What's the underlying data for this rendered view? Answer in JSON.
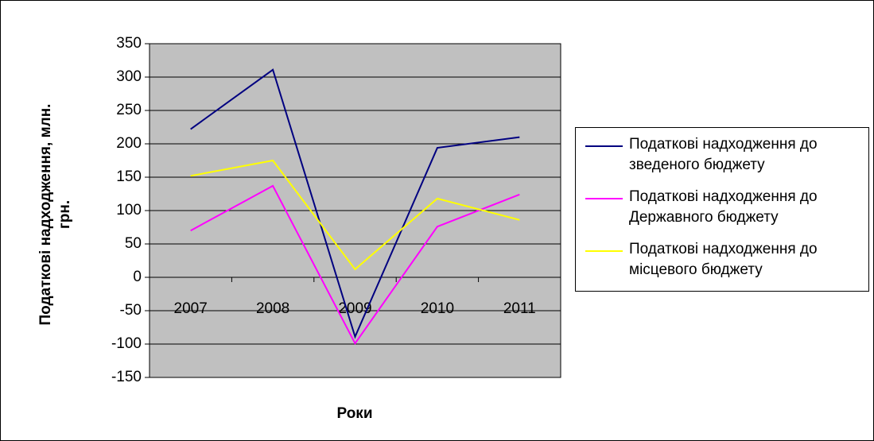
{
  "chart_data": {
    "type": "line",
    "x_label": "Роки",
    "y_label": "Податкові надходження, млн. грн.",
    "categories": [
      "2007",
      "2008",
      "2009",
      "2010",
      "2011"
    ],
    "series": [
      {
        "name": "Податкові надходження до зведеного бюджету",
        "color": "#000080",
        "values": [
          222,
          311,
          -89,
          194,
          210
        ]
      },
      {
        "name": "Податкові надходження до Державного бюджету",
        "color": "#ff00ff",
        "values": [
          70,
          137,
          -99,
          76,
          124
        ]
      },
      {
        "name": "Податкові надходження до місцевого бюджету",
        "color": "#ffff00",
        "values": [
          152,
          175,
          12,
          118,
          86
        ]
      }
    ],
    "ylim": [
      -150,
      350
    ],
    "yticks": [
      -150,
      -100,
      -50,
      0,
      50,
      100,
      150,
      200,
      250,
      300,
      350
    ],
    "grid": true,
    "legend": "right"
  }
}
